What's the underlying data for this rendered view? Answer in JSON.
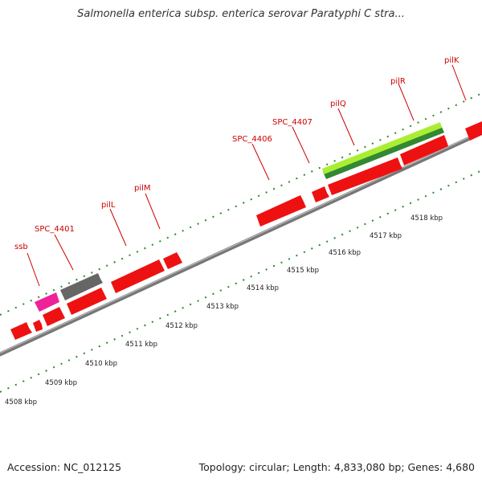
{
  "header": {
    "title": "Salmonella enterica subsp. enterica serovar Paratyphi C stra..."
  },
  "footer": {
    "accession": "Accession: NC_012125",
    "summary": "Topology: circular; Length: 4,833,080 bp; Genes: 4,680"
  },
  "map": {
    "gene_labels": [
      "ssb",
      "SPC_4401",
      "pilL",
      "pilM",
      "SPC_4406",
      "SPC_4407",
      "pilQ",
      "pilR",
      "pilK"
    ],
    "kbp_labels": [
      "4508 kbp",
      "4509 kbp",
      "4510 kbp",
      "4511 kbp",
      "4512 kbp",
      "4513 kbp",
      "4514 kbp",
      "4515 kbp",
      "4516 kbp",
      "4517 kbp",
      "4518 kbp"
    ],
    "colors": {
      "gene": "#ee1111",
      "gene_magenta": "#ee2299",
      "gene_gray": "#666666",
      "highlight_light": "#aaee33",
      "highlight_dark": "#338833",
      "backbone": "#888888",
      "ticks": "#2a8a2a",
      "label": "#cc0000"
    }
  }
}
